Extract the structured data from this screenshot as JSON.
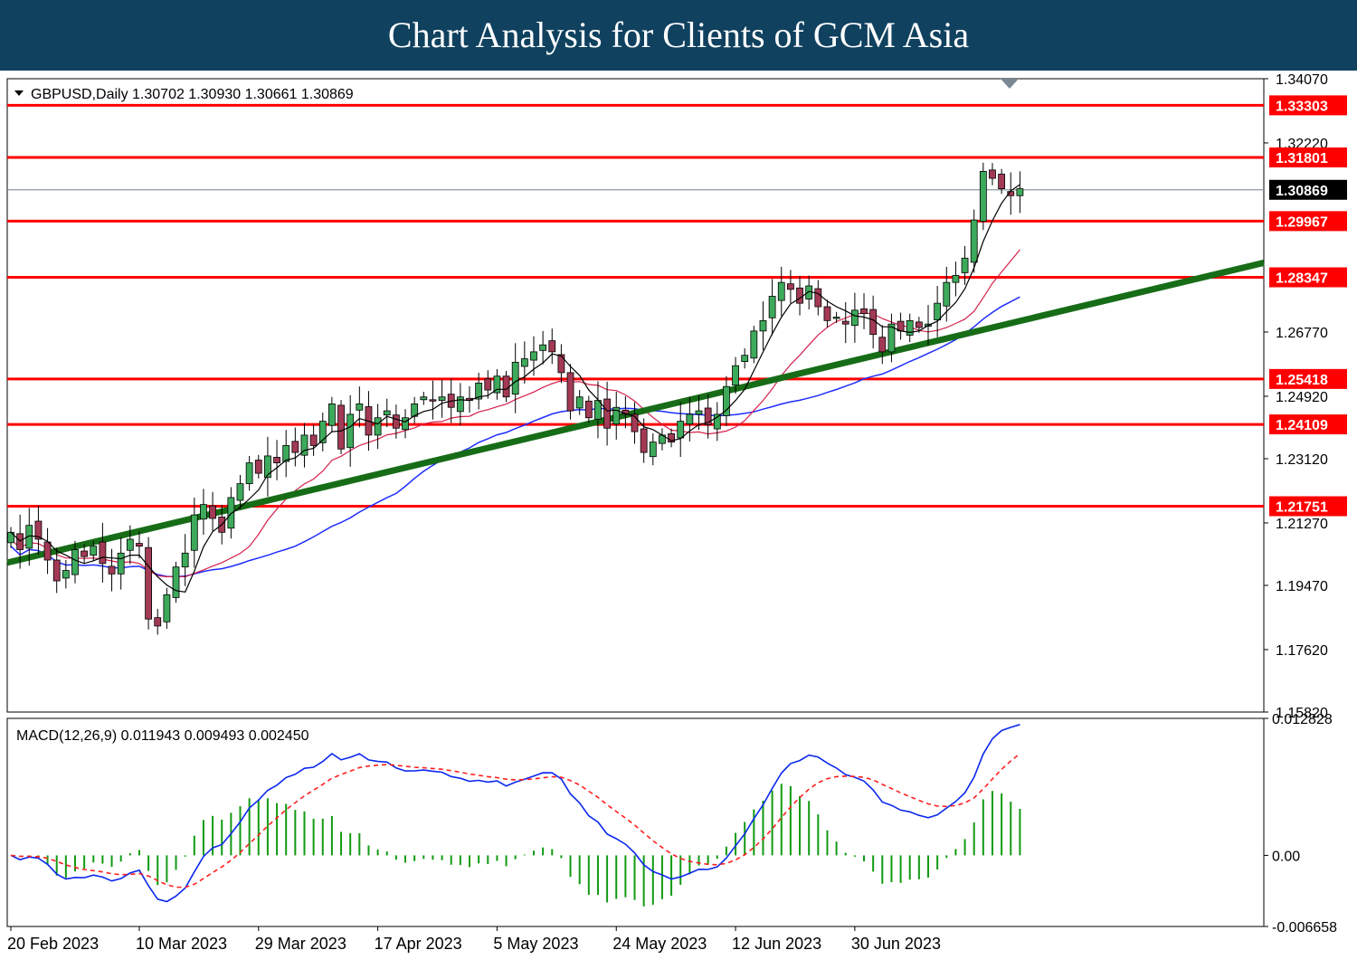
{
  "header": {
    "title": "Chart Analysis for Clients of GCM Asia"
  },
  "chart_data": [
    {
      "type": "candlestick",
      "symbol_line": "GBPUSD,Daily  1.30702 1.30930 1.30661 1.30869",
      "current_price": 1.30869,
      "current_price_label": "1.30869",
      "ylim": [
        1.1582,
        1.3407
      ],
      "yticks": [
        {
          "value": 1.3407,
          "label": "1.34070"
        },
        {
          "value": 1.3222,
          "label": "1.32220"
        },
        {
          "value": 1.2677,
          "label": "1.26770"
        },
        {
          "value": 1.2492,
          "label": "1.24920"
        },
        {
          "value": 1.2312,
          "label": "1.23120"
        },
        {
          "value": 1.2127,
          "label": "1.21270"
        },
        {
          "value": 1.1947,
          "label": "1.19470"
        },
        {
          "value": 1.1762,
          "label": "1.17620"
        },
        {
          "value": 1.1582,
          "label": "1.15820"
        }
      ],
      "xticks": [
        {
          "index": 0,
          "label": "20 Feb 2023"
        },
        {
          "index": 14,
          "label": "10 Mar 2023"
        },
        {
          "index": 27,
          "label": "29 Mar 2023"
        },
        {
          "index": 40,
          "label": "17 Apr 2023"
        },
        {
          "index": 53,
          "label": "5 May 2023"
        },
        {
          "index": 66,
          "label": "24 May 2023"
        },
        {
          "index": 79,
          "label": "12 Jun 2023"
        },
        {
          "index": 92,
          "label": "30 Jun 2023"
        }
      ],
      "levels": [
        {
          "value": 1.33303,
          "label": "1.33303"
        },
        {
          "value": 1.31801,
          "label": "1.31801"
        },
        {
          "value": 1.29967,
          "label": "1.29967"
        },
        {
          "value": 1.28347,
          "label": "1.28347"
        },
        {
          "value": 1.25418,
          "label": "1.25418"
        },
        {
          "value": 1.24109,
          "label": "1.24109"
        },
        {
          "value": 1.21751,
          "label": "1.21751"
        }
      ],
      "trendline": {
        "from": {
          "index": 0,
          "value": 1.2015
        },
        "to": {
          "index": 107,
          "value": 1.269
        }
      },
      "closes": [
        1.21,
        1.205,
        1.212,
        1.208,
        1.202,
        1.196,
        1.199,
        1.205,
        1.203,
        1.206,
        1.201,
        1.198,
        1.204,
        1.208,
        1.206,
        1.185,
        1.183,
        1.192,
        1.2,
        1.204,
        1.215,
        1.218,
        1.214,
        1.21,
        1.22,
        1.224,
        1.23,
        1.227,
        1.232,
        1.23,
        1.235,
        1.233,
        1.238,
        1.235,
        1.242,
        1.247,
        1.234,
        1.244,
        1.247,
        1.238,
        1.243,
        1.245,
        1.24,
        1.243,
        1.247,
        1.249,
        1.248,
        1.249,
        1.246,
        1.249,
        1.248,
        1.253,
        1.251,
        1.255,
        1.249,
        1.259,
        1.26,
        1.262,
        1.264,
        1.262,
        1.256,
        1.245,
        1.249,
        1.243,
        1.248,
        1.24,
        1.246,
        1.244,
        1.239,
        1.233,
        1.236,
        1.238,
        1.236,
        1.242,
        1.244,
        1.245,
        1.241,
        1.244,
        1.252,
        1.258,
        1.261,
        1.268,
        1.271,
        1.278,
        1.282,
        1.28,
        1.276,
        1.281,
        1.275,
        1.271,
        1.272,
        1.27,
        1.274,
        1.273,
        1.267,
        1.262,
        1.27,
        1.268,
        1.271,
        1.269,
        1.27,
        1.276,
        1.282,
        1.284,
        1.289,
        1.3,
        1.314,
        1.312,
        1.309,
        1.307,
        1.309
      ]
    },
    {
      "type": "line",
      "title": "MACD(12,26,9) 0.011943 0.009493 0.002450",
      "ylim": [
        -0.006658,
        0.012828
      ],
      "yticks": [
        {
          "value": 0.012828,
          "label": "0.012828"
        },
        {
          "value": 0,
          "label": "0.00"
        },
        {
          "value": -0.006658,
          "label": "-0.006658"
        }
      ]
    }
  ],
  "colors": {
    "level": "#ff0000",
    "trend": "#176d17",
    "ma_fast": "#000000",
    "ma_mid": "#d4204a",
    "ma_slow": "#1f2dff",
    "bull": "#3daa5b",
    "bear": "#a33a55",
    "macd": "#0b28ee",
    "signal": "#ff1f1f",
    "hist": "#119a11"
  }
}
